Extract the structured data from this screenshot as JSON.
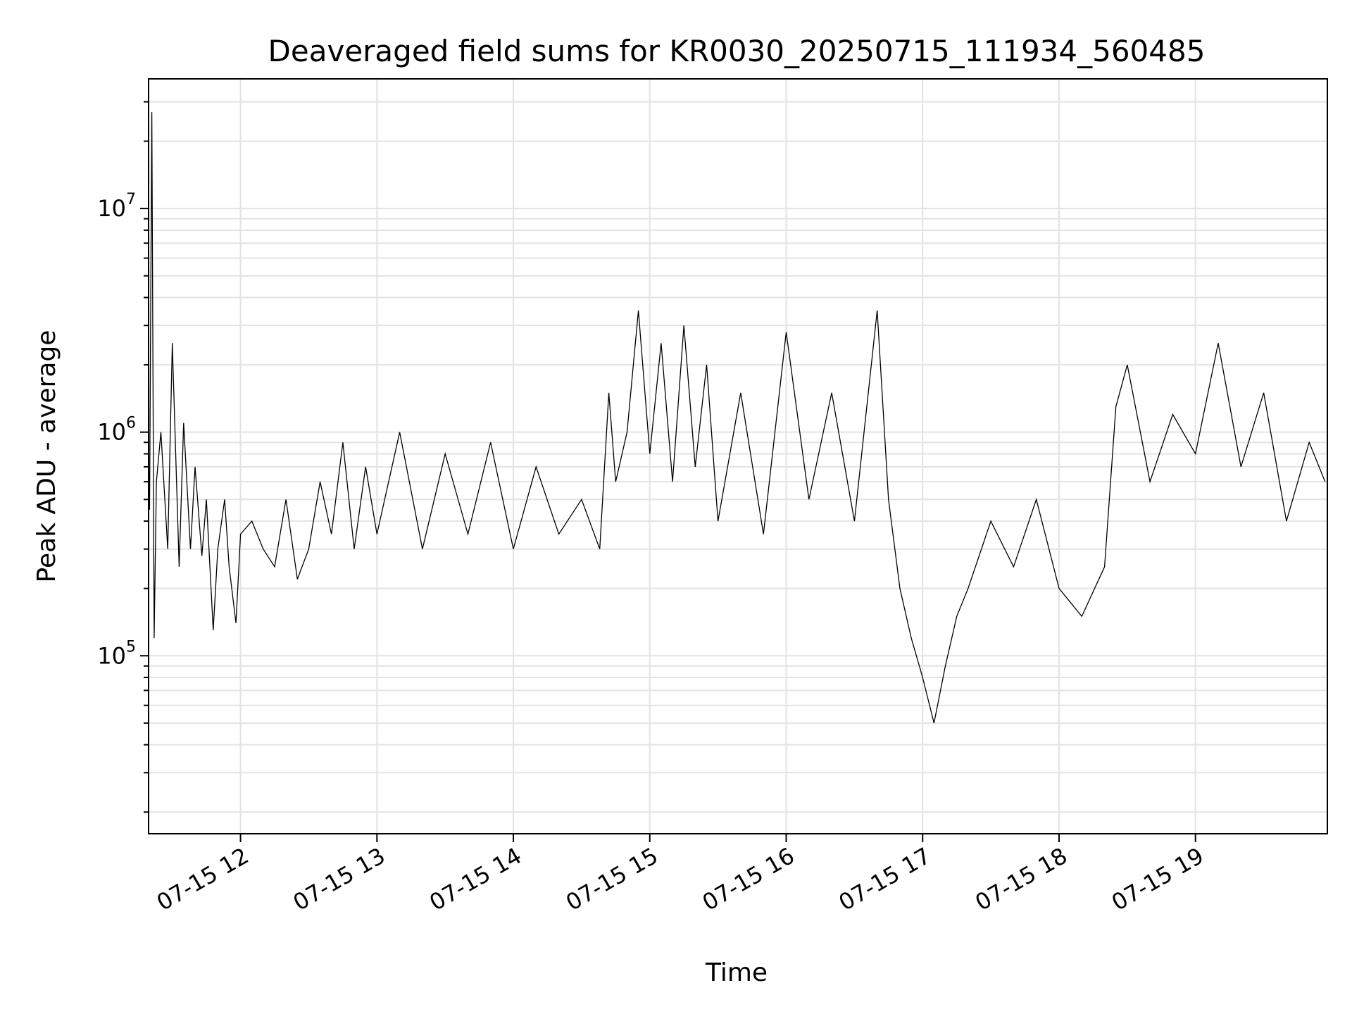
{
  "chart_data": {
    "type": "line",
    "title": "Deaveraged field sums for KR0030_20250715_111934_560485",
    "xlabel": "Time",
    "ylabel": "Peak ADU - average",
    "xlim": [
      "2025-07-15 11:19:34",
      "2025-07-15 19:58:00"
    ],
    "ylim": [
      16000,
      38000000
    ],
    "yscale": "log",
    "grid": true,
    "grid_minor": true,
    "x_ticks": [
      "2025-07-15 12:00",
      "2025-07-15 13:00",
      "2025-07-15 14:00",
      "2025-07-15 15:00",
      "2025-07-15 16:00",
      "2025-07-15 17:00",
      "2025-07-15 18:00",
      "2025-07-15 19:00"
    ],
    "x_tick_labels": [
      "07-15 12",
      "07-15 13",
      "07-15 14",
      "07-15 15",
      "07-15 16",
      "07-15 17",
      "07-15 18",
      "07-15 19"
    ],
    "y_ticks": [
      {
        "value": 100000,
        "base": "10",
        "exp": "5"
      },
      {
        "value": 1000000,
        "base": "10",
        "exp": "6"
      },
      {
        "value": 10000000,
        "base": "10",
        "exp": "7"
      }
    ],
    "series": [
      {
        "color": "#000000",
        "x": [
          "2025-07-15 11:20",
          "2025-07-15 11:21",
          "2025-07-15 11:22",
          "2025-07-15 11:23",
          "2025-07-15 11:25",
          "2025-07-15 11:28",
          "2025-07-15 11:30",
          "2025-07-15 11:33",
          "2025-07-15 11:35",
          "2025-07-15 11:38",
          "2025-07-15 11:40",
          "2025-07-15 11:43",
          "2025-07-15 11:45",
          "2025-07-15 11:48",
          "2025-07-15 11:50",
          "2025-07-15 11:53",
          "2025-07-15 11:55",
          "2025-07-15 11:58",
          "2025-07-15 12:00",
          "2025-07-15 12:05",
          "2025-07-15 12:10",
          "2025-07-15 12:15",
          "2025-07-15 12:20",
          "2025-07-15 12:25",
          "2025-07-15 12:30",
          "2025-07-15 12:35",
          "2025-07-15 12:40",
          "2025-07-15 12:45",
          "2025-07-15 12:50",
          "2025-07-15 12:55",
          "2025-07-15 13:00",
          "2025-07-15 13:10",
          "2025-07-15 13:20",
          "2025-07-15 13:30",
          "2025-07-15 13:40",
          "2025-07-15 13:50",
          "2025-07-15 14:00",
          "2025-07-15 14:10",
          "2025-07-15 14:20",
          "2025-07-15 14:30",
          "2025-07-15 14:38",
          "2025-07-15 14:42",
          "2025-07-15 14:45",
          "2025-07-15 14:50",
          "2025-07-15 14:55",
          "2025-07-15 15:00",
          "2025-07-15 15:05",
          "2025-07-15 15:10",
          "2025-07-15 15:15",
          "2025-07-15 15:20",
          "2025-07-15 15:25",
          "2025-07-15 15:30",
          "2025-07-15 15:40",
          "2025-07-15 15:50",
          "2025-07-15 16:00",
          "2025-07-15 16:10",
          "2025-07-15 16:20",
          "2025-07-15 16:30",
          "2025-07-15 16:40",
          "2025-07-15 16:45",
          "2025-07-15 16:50",
          "2025-07-15 16:55",
          "2025-07-15 17:00",
          "2025-07-15 17:05",
          "2025-07-15 17:10",
          "2025-07-15 17:15",
          "2025-07-15 17:20",
          "2025-07-15 17:30",
          "2025-07-15 17:40",
          "2025-07-15 17:50",
          "2025-07-15 18:00",
          "2025-07-15 18:10",
          "2025-07-15 18:20",
          "2025-07-15 18:25",
          "2025-07-15 18:30",
          "2025-07-15 18:40",
          "2025-07-15 18:50",
          "2025-07-15 19:00",
          "2025-07-15 19:10",
          "2025-07-15 19:20",
          "2025-07-15 19:30",
          "2025-07-15 19:40",
          "2025-07-15 19:50",
          "2025-07-15 19:57"
        ],
        "y": [
          450000,
          27000000,
          120000,
          600000,
          1000000,
          300000,
          2500000,
          250000,
          1100000,
          300000,
          700000,
          280000,
          500000,
          130000,
          300000,
          500000,
          250000,
          140000,
          350000,
          400000,
          300000,
          250000,
          500000,
          220000,
          300000,
          600000,
          350000,
          900000,
          300000,
          700000,
          350000,
          1000000,
          300000,
          800000,
          350000,
          900000,
          300000,
          700000,
          350000,
          500000,
          300000,
          1500000,
          600000,
          1000000,
          3500000,
          800000,
          2500000,
          600000,
          3000000,
          700000,
          2000000,
          400000,
          1500000,
          350000,
          2800000,
          500000,
          1500000,
          400000,
          3500000,
          500000,
          200000,
          120000,
          80000,
          50000,
          90000,
          150000,
          200000,
          400000,
          250000,
          500000,
          200000,
          150000,
          250000,
          1300000,
          2000000,
          600000,
          1200000,
          800000,
          2500000,
          700000,
          1500000,
          400000,
          900000,
          600000
        ]
      }
    ]
  }
}
